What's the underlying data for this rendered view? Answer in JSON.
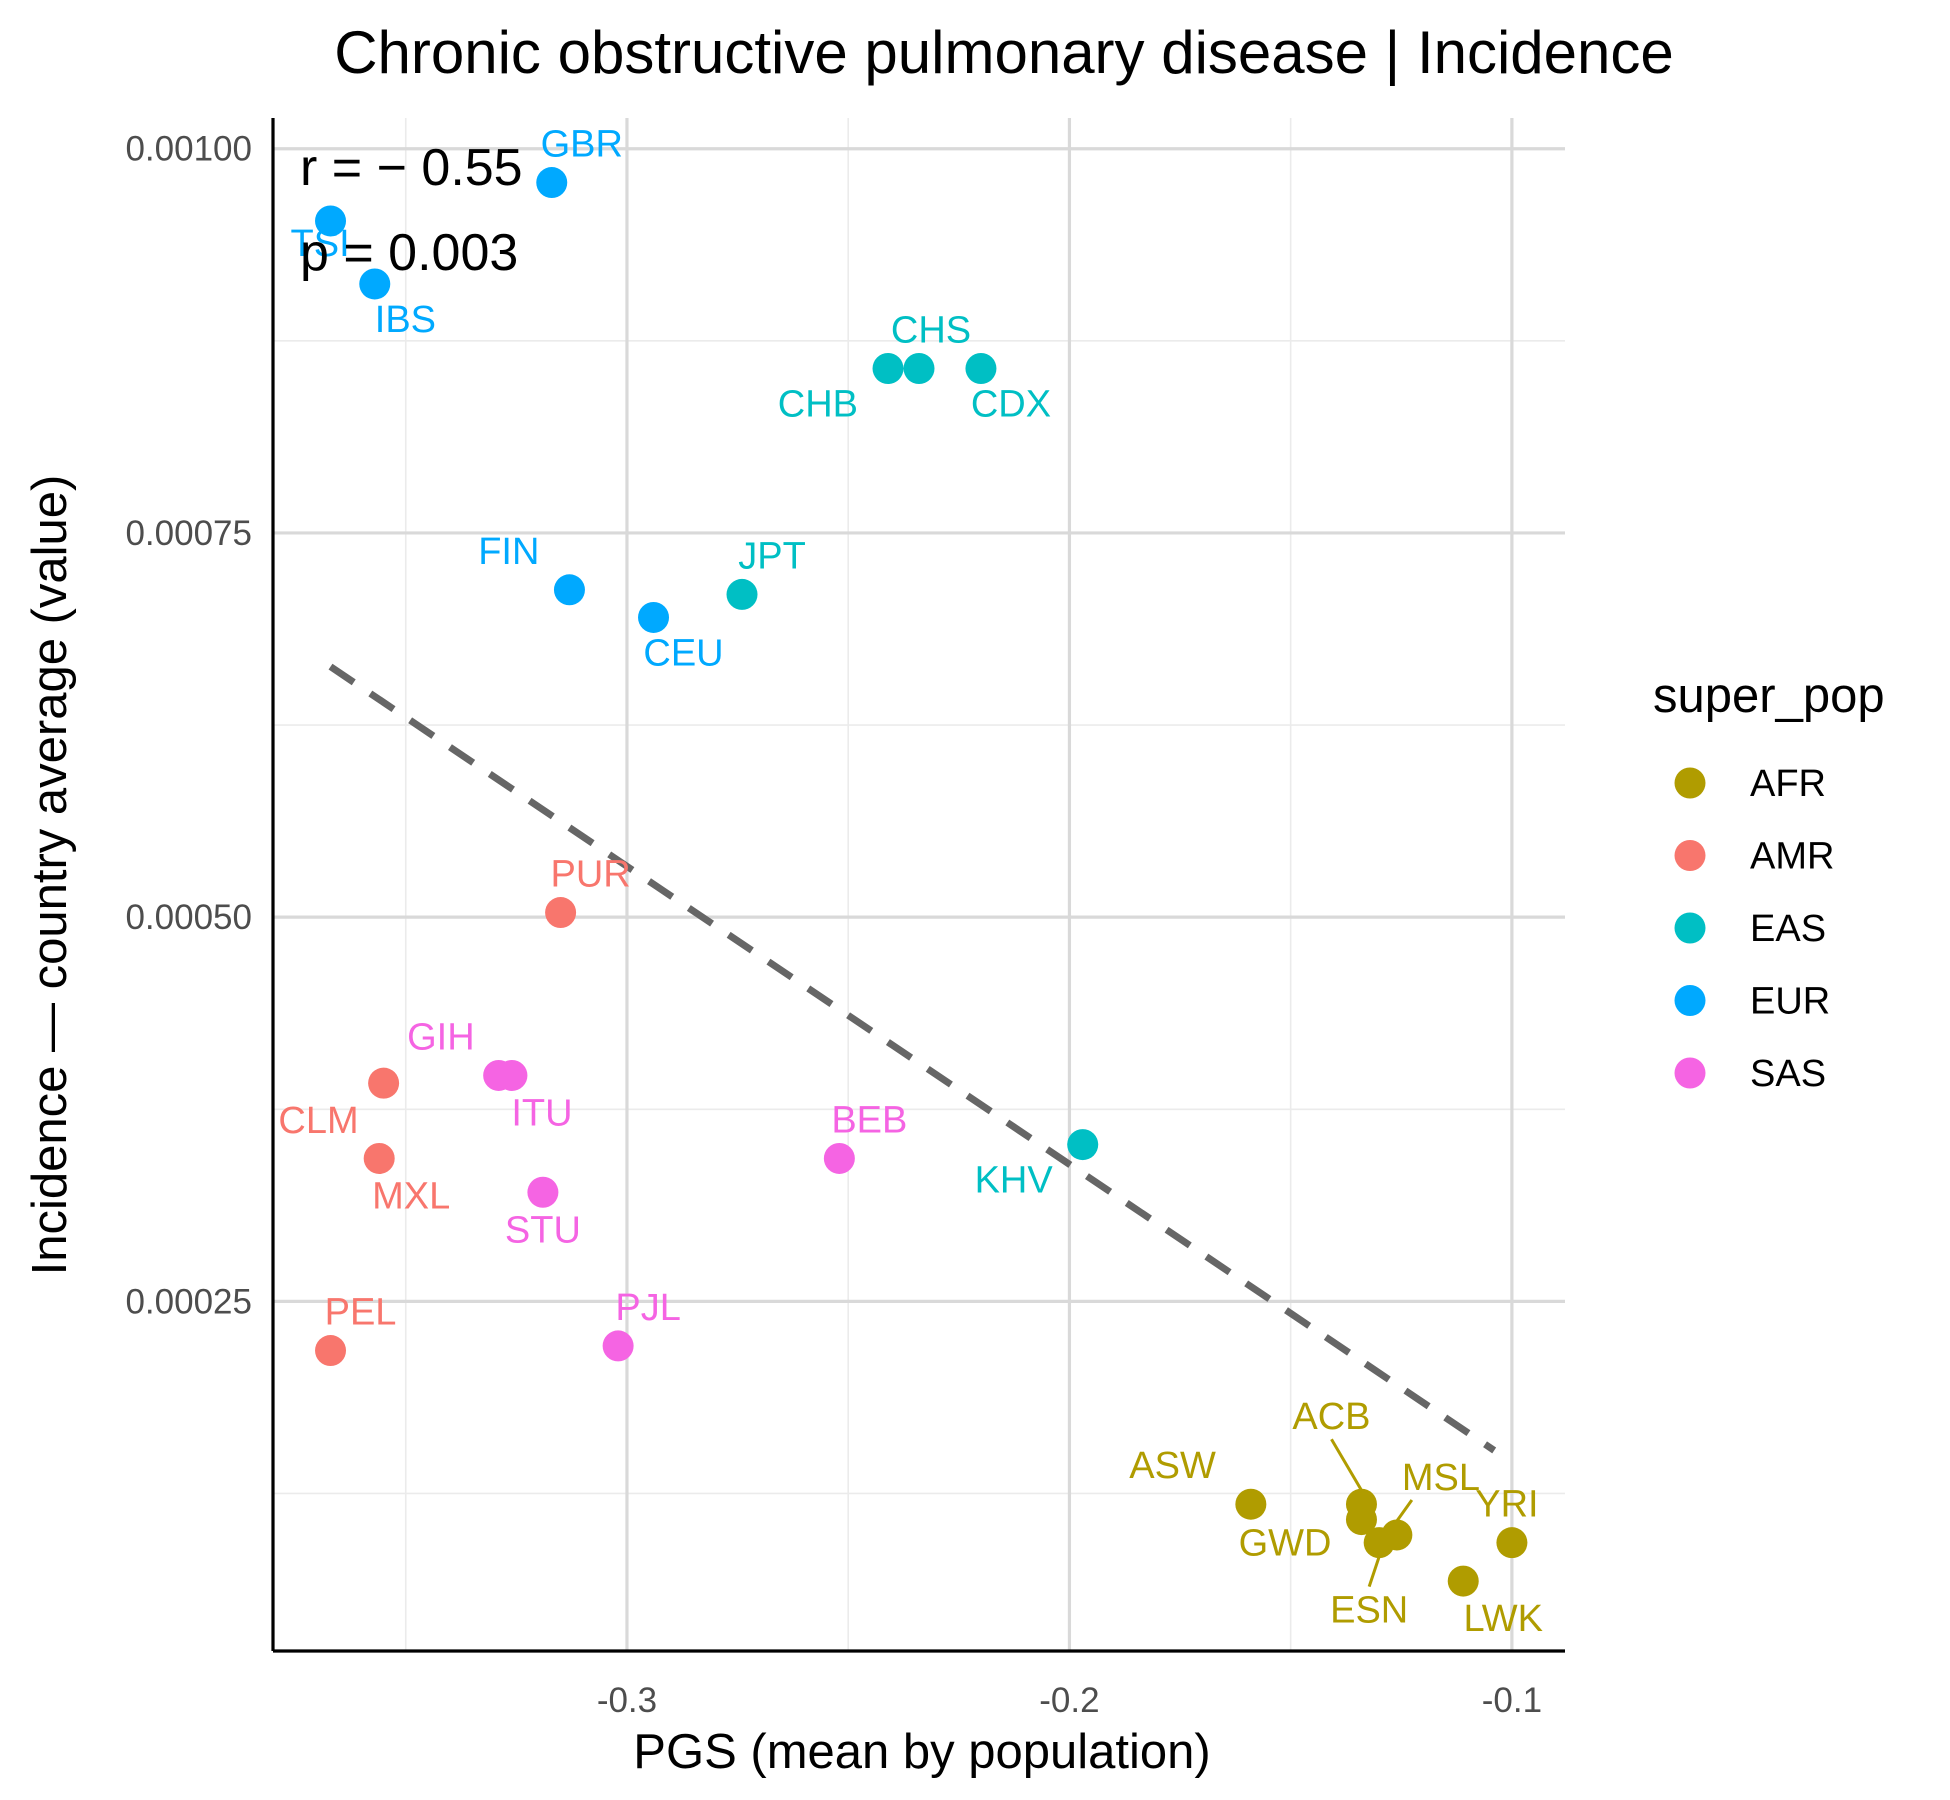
{
  "chart_data": {
    "type": "scatter",
    "title": "Chronic obstructive pulmonary disease | Incidence",
    "xlabel": "PGS (mean by population)",
    "ylabel": "Incidence — country average (value)",
    "xlim": [
      -0.38,
      -0.088
    ],
    "ylim": [
      2.25e-05,
      0.00102
    ],
    "x_ticks": [
      -0.3,
      -0.2,
      -0.1
    ],
    "x_tick_labels": [
      "-0.3",
      "-0.2",
      "-0.1"
    ],
    "y_ticks": [
      0.00025,
      0.0005,
      0.00075,
      0.001
    ],
    "y_tick_labels": [
      "0.00025",
      "0.00050",
      "0.00075",
      "0.00100"
    ],
    "grid": true,
    "legend": {
      "title": "super_pop",
      "position": "right",
      "entries": [
        {
          "name": "AFR",
          "color": "#b09c00"
        },
        {
          "name": "AMR",
          "color": "#f8766d"
        },
        {
          "name": "EAS",
          "color": "#00bfc4"
        },
        {
          "name": "EUR",
          "color": "#00a9ff"
        },
        {
          "name": "SAS",
          "color": "#f564e3"
        }
      ]
    },
    "annotation": {
      "r": "r = − 0.55",
      "p": "p = 0.003"
    },
    "trend_line": {
      "x": [
        -0.367,
        -0.104
      ],
      "y": [
        0.000663,
        0.000153
      ]
    },
    "points": [
      {
        "label": "GBR",
        "group": "EUR",
        "x": -0.317,
        "y": 0.000978
      },
      {
        "label": "TSI",
        "group": "EUR",
        "x": -0.367,
        "y": 0.000953
      },
      {
        "label": "IBS",
        "group": "EUR",
        "x": -0.357,
        "y": 0.000912
      },
      {
        "label": "FIN",
        "group": "EUR",
        "x": -0.313,
        "y": 0.000713
      },
      {
        "label": "CEU",
        "group": "EUR",
        "x": -0.294,
        "y": 0.000695
      },
      {
        "label": "CHS",
        "group": "EAS",
        "x": -0.234,
        "y": 0.000857
      },
      {
        "label": "CHB",
        "group": "EAS",
        "x": -0.241,
        "y": 0.000857
      },
      {
        "label": "CDX",
        "group": "EAS",
        "x": -0.22,
        "y": 0.000857
      },
      {
        "label": "JPT",
        "group": "EAS",
        "x": -0.274,
        "y": 0.00071
      },
      {
        "label": "KHV",
        "group": "EAS",
        "x": -0.197,
        "y": 0.000352
      },
      {
        "label": "PUR",
        "group": "AMR",
        "x": -0.315,
        "y": 0.000503
      },
      {
        "label": "CLM",
        "group": "AMR",
        "x": -0.355,
        "y": 0.000392
      },
      {
        "label": "MXL",
        "group": "AMR",
        "x": -0.356,
        "y": 0.000343
      },
      {
        "label": "PEL",
        "group": "AMR",
        "x": -0.367,
        "y": 0.000218
      },
      {
        "label": "GIH",
        "group": "SAS",
        "x": -0.329,
        "y": 0.000397
      },
      {
        "label": "ITU",
        "group": "SAS",
        "x": -0.326,
        "y": 0.000397
      },
      {
        "label": "STU",
        "group": "SAS",
        "x": -0.319,
        "y": 0.000321
      },
      {
        "label": "BEB",
        "group": "SAS",
        "x": -0.252,
        "y": 0.000343
      },
      {
        "label": "PJL",
        "group": "SAS",
        "x": -0.302,
        "y": 0.000221
      },
      {
        "label": "ASW",
        "group": "AFR",
        "x": -0.159,
        "y": 0.000118
      },
      {
        "label": "ACB",
        "group": "AFR",
        "x": -0.134,
        "y": 0.000118
      },
      {
        "label": "GWD",
        "group": "AFR",
        "x": -0.134,
        "y": 0.000108
      },
      {
        "label": "MSL",
        "group": "AFR",
        "x": -0.126,
        "y": 9.8e-05
      },
      {
        "label": "ESN",
        "group": "AFR",
        "x": -0.13,
        "y": 9.3e-05
      },
      {
        "label": "YRI",
        "group": "AFR",
        "x": -0.1,
        "y": 9.3e-05
      },
      {
        "label": "LWK",
        "group": "AFR",
        "x": -0.111,
        "y": 6.8e-05
      }
    ]
  }
}
